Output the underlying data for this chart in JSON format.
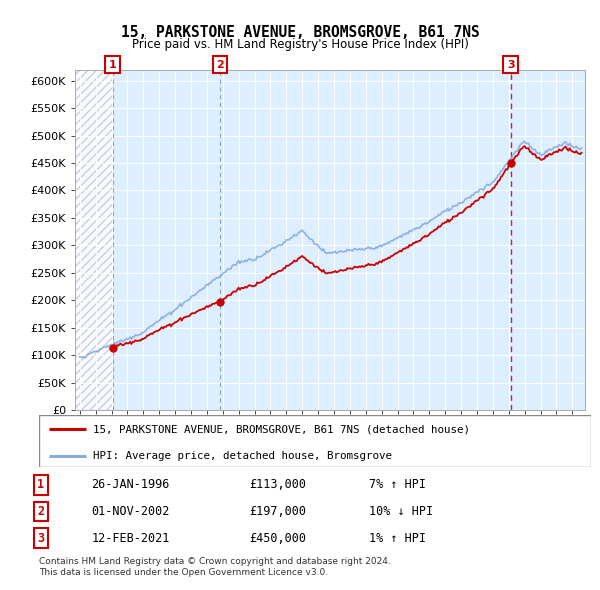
{
  "title": "15, PARKSTONE AVENUE, BROMSGROVE, B61 7NS",
  "subtitle": "Price paid vs. HM Land Registry's House Price Index (HPI)",
  "ytick_values": [
    0,
    50000,
    100000,
    150000,
    200000,
    250000,
    300000,
    350000,
    400000,
    450000,
    500000,
    550000,
    600000
  ],
  "ylim": [
    0,
    620000
  ],
  "xlim_start": 1993.7,
  "xlim_end": 2025.8,
  "sales": [
    {
      "date_num": 1996.07,
      "price": 113000,
      "label": "1"
    },
    {
      "date_num": 2002.83,
      "price": 197000,
      "label": "2"
    },
    {
      "date_num": 2021.12,
      "price": 450000,
      "label": "3"
    }
  ],
  "table_rows": [
    {
      "num": "1",
      "date": "26-JAN-1996",
      "price": "£113,000",
      "hpi": "7% ↑ HPI"
    },
    {
      "num": "2",
      "date": "01-NOV-2002",
      "price": "£197,000",
      "hpi": "10% ↓ HPI"
    },
    {
      "num": "3",
      "date": "12-FEB-2021",
      "price": "£450,000",
      "hpi": "1% ↑ HPI"
    }
  ],
  "legend_label_property": "15, PARKSTONE AVENUE, BROMSGROVE, B61 7NS (detached house)",
  "legend_label_hpi": "HPI: Average price, detached house, Bromsgrove",
  "property_color": "#cc0000",
  "hpi_color": "#88aadd",
  "footer1": "Contains HM Land Registry data © Crown copyright and database right 2024.",
  "footer2": "This data is licensed under the Open Government Licence v3.0.",
  "bg_color": "#ddeeff",
  "hatch_bg": "#e8eef8"
}
